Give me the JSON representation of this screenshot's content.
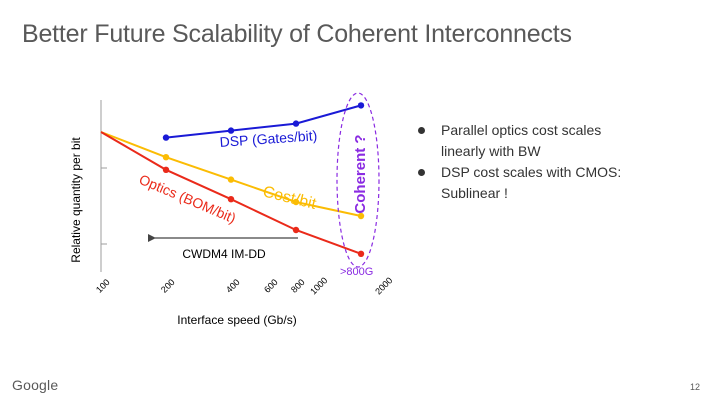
{
  "slide": {
    "title": "Better Future Scalability of Coherent Interconnects",
    "footer_logo": "Google",
    "page_number": "12"
  },
  "bullets": [
    {
      "text_line1": "Parallel optics cost scales",
      "text_line2": "linearly with BW"
    },
    {
      "text_line1": "DSP cost scales with CMOS:",
      "text_line2": "Sublinear !"
    }
  ],
  "colors": {
    "dsp": "#1a1ad6",
    "cost": "#fbbc04",
    "optics": "#ea2a1a",
    "coherent": "#8a2be2",
    "arrow": "#444444",
    "axis": "#9e9e9e"
  },
  "chart_data": {
    "type": "line",
    "title": "",
    "xlabel": "Interface speed (Gb/s)",
    "ylabel": "Relative quantity per bit",
    "x_scale": "log2",
    "x_ticks": [
      "100",
      "200",
      "400",
      "600",
      "800",
      "1000",
      "2000"
    ],
    "x_tick_values": [
      100,
      200,
      400,
      600,
      800,
      1000,
      2000
    ],
    "ylim": [
      0,
      1.25
    ],
    "series": [
      {
        "name": "DSP (Gates/bit)",
        "color_key": "dsp",
        "points": [
          [
            200,
            0.96
          ],
          [
            400,
            1.01
          ],
          [
            800,
            1.06
          ],
          [
            1600,
            1.19
          ]
        ]
      },
      {
        "name": "Cost/bit",
        "color_key": "cost",
        "points": [
          [
            100,
            1.0
          ],
          [
            200,
            0.82
          ],
          [
            400,
            0.66
          ],
          [
            800,
            0.5
          ],
          [
            1600,
            0.4
          ]
        ]
      },
      {
        "name": "Optics (BOM/bit)",
        "color_key": "optics",
        "points": [
          [
            100,
            1.0
          ],
          [
            200,
            0.73
          ],
          [
            400,
            0.52
          ],
          [
            800,
            0.3
          ],
          [
            1600,
            0.13
          ]
        ]
      }
    ],
    "annotations": {
      "coherent_label": "Coherent ?",
      "cwdm4_label": "CWDM4 IM-DD",
      "over_800g_label": ">800G"
    }
  }
}
